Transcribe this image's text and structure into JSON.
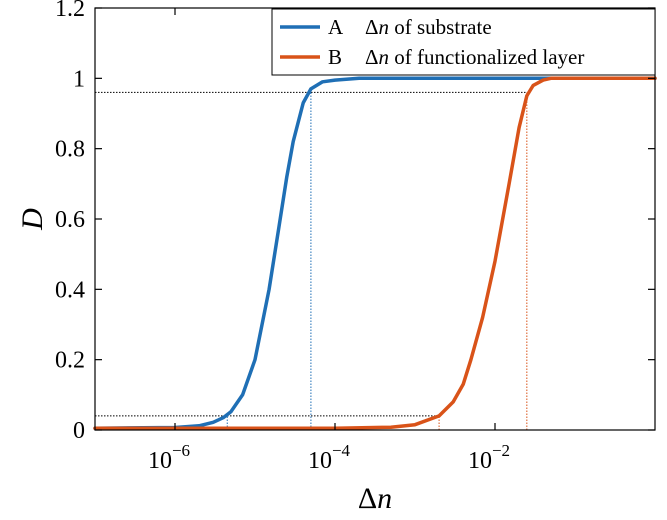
{
  "chart_data": {
    "type": "line",
    "xlabel_symbol": "Δ",
    "xlabel_var": "n",
    "ylabel": "D",
    "x_scale": "log",
    "xlim": [
      1e-07,
      1
    ],
    "ylim": [
      0,
      1.2
    ],
    "x_ticks": [
      {
        "value": 1e-06,
        "base": "10",
        "exp": "−6"
      },
      {
        "value": 0.0001,
        "base": "10",
        "exp": "−4"
      },
      {
        "value": 0.01,
        "base": "10",
        "exp": "−2"
      }
    ],
    "y_ticks": [
      {
        "value": 0,
        "label": "0"
      },
      {
        "value": 0.2,
        "label": "0.2"
      },
      {
        "value": 0.4,
        "label": "0.4"
      },
      {
        "value": 0.6,
        "label": "0.6"
      },
      {
        "value": 0.8,
        "label": "0.8"
      },
      {
        "value": 1.0,
        "label": "1"
      },
      {
        "value": 1.2,
        "label": "1.2"
      }
    ],
    "grid": false,
    "legend_position": "top-right",
    "series": [
      {
        "name": "A",
        "legend_text_pre": "Δ",
        "legend_text_var": "n",
        "legend_text_post": " of substrate",
        "color": "#1f6fb5",
        "x": [
          1e-07,
          1e-06,
          2e-06,
          3e-06,
          4e-06,
          5e-06,
          7e-06,
          1e-05,
          1.5e-05,
          2e-05,
          2.5e-05,
          3e-05,
          4e-05,
          5e-05,
          7e-05,
          0.0001,
          0.0002,
          0.001,
          0.01,
          1
        ],
        "y": [
          0.005,
          0.007,
          0.012,
          0.022,
          0.035,
          0.052,
          0.1,
          0.2,
          0.4,
          0.58,
          0.72,
          0.82,
          0.93,
          0.97,
          0.99,
          0.995,
          1.0,
          1.0,
          1.0,
          1.0
        ]
      },
      {
        "name": "B",
        "legend_text_pre": "Δ",
        "legend_text_var": "n",
        "legend_text_post": " of functionalized layer",
        "color": "#d95319",
        "x": [
          1e-07,
          1e-05,
          0.0001,
          0.0005,
          0.001,
          0.002,
          0.003,
          0.004,
          0.005,
          0.007,
          0.01,
          0.015,
          0.02,
          0.025,
          0.03,
          0.04,
          0.05,
          0.07,
          0.1,
          1
        ],
        "y": [
          0.005,
          0.005,
          0.005,
          0.008,
          0.015,
          0.04,
          0.08,
          0.13,
          0.2,
          0.32,
          0.48,
          0.7,
          0.86,
          0.95,
          0.98,
          0.995,
          1.0,
          1.0,
          1.0,
          1.0
        ]
      }
    ],
    "reference_lines": [
      {
        "y": 0.04,
        "color": "#000000",
        "style": "dotted",
        "x_end": 0.002
      },
      {
        "y": 0.96,
        "color": "#000000",
        "style": "dotted",
        "x_end": 0.025
      },
      {
        "x": 4.5e-06,
        "color": "#1f6fb5",
        "style": "dotted",
        "y_end": 0.04
      },
      {
        "x": 5e-05,
        "color": "#1f6fb5",
        "style": "dotted",
        "y_end": 0.96
      },
      {
        "x": 0.002,
        "color": "#d95319",
        "style": "dotted",
        "y_end": 0.04
      },
      {
        "x": 0.025,
        "color": "#d95319",
        "style": "dotted",
        "y_end": 0.96
      }
    ]
  }
}
